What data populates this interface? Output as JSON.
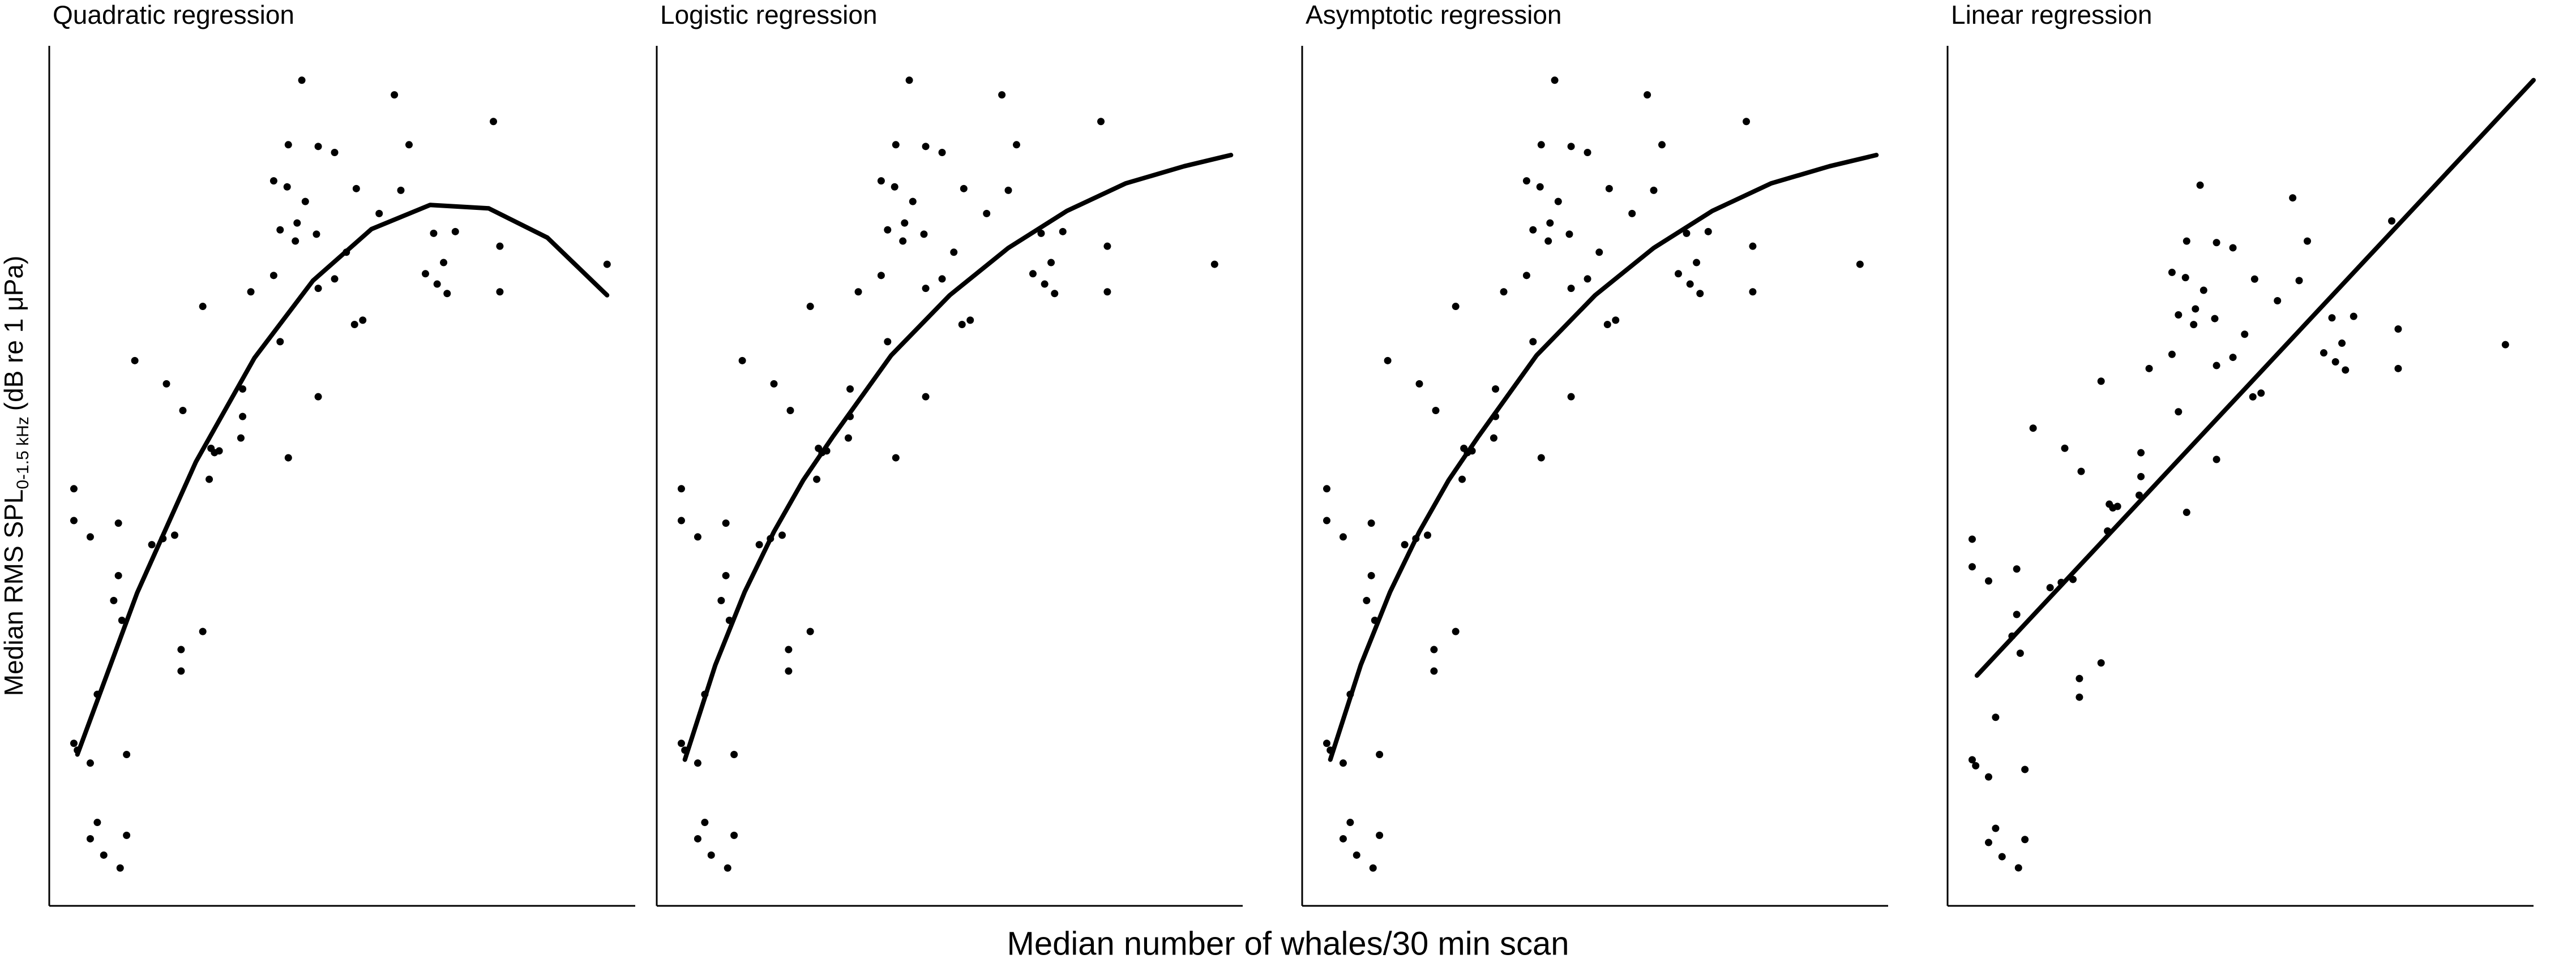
{
  "x_label": "Median number of whales/30 min scan",
  "y_label": {
    "main": "Median RMS SPL",
    "sub": "0-1.5 kHz",
    "unit": "(dB re 1 μPa)"
  },
  "chart_data": [
    {
      "type": "scatter",
      "title": "Quadratic regression",
      "color": "#000000",
      "xlim": [
        0,
        100
      ],
      "ylim": [
        0,
        100
      ],
      "x": [
        43.1,
        58.9,
        75.8,
        40.8,
        45.9,
        48.7,
        61.4,
        38.3,
        40.6,
        52.4,
        60.0,
        43.7,
        56.3,
        39.4,
        42.3,
        45.6,
        42.0,
        65.6,
        69.3,
        50.7,
        34.4,
        45.9,
        48.7,
        38.3,
        67.3,
        64.2,
        66.2,
        67.9,
        76.9,
        76.9,
        95.2,
        26.2,
        53.5,
        52.1,
        14.6,
        39.4,
        45.9,
        20.0,
        22.8,
        33.0,
        33.0,
        32.7,
        27.6,
        29.0,
        28.2,
        27.3,
        40.8,
        17.5,
        19.4,
        21.4,
        11.8,
        4.2,
        4.2,
        7.0,
        11.8,
        11.0,
        12.4,
        26.2,
        22.5,
        22.5,
        8.2,
        4.2,
        4.8,
        13.2,
        7.0,
        8.2,
        7.0,
        13.2,
        9.3,
        12.1
      ],
      "y": [
        96.0,
        94.3,
        91.2,
        88.5,
        88.3,
        87.6,
        88.5,
        84.3,
        83.6,
        83.4,
        83.2,
        81.9,
        80.5,
        78.6,
        79.4,
        78.1,
        77.3,
        78.2,
        78.4,
        76.0,
        71.4,
        71.8,
        72.9,
        73.3,
        74.8,
        73.5,
        72.3,
        71.2,
        76.7,
        71.4,
        74.6,
        69.7,
        68.1,
        67.6,
        63.4,
        65.6,
        59.2,
        60.7,
        57.6,
        60.1,
        56.9,
        54.4,
        53.2,
        52.9,
        52.7,
        49.6,
        52.1,
        42.0,
        42.7,
        43.1,
        44.5,
        48.5,
        44.8,
        42.9,
        38.4,
        35.5,
        33.2,
        31.9,
        29.8,
        27.3,
        24.6,
        18.9,
        18.1,
        17.6,
        16.6,
        9.7,
        7.8,
        8.2,
        5.9,
        4.4
      ],
      "fit": {
        "x": [
          4.8,
          15,
          25,
          35,
          45,
          55,
          65,
          75,
          85,
          95.2
        ],
        "y": [
          17.6,
          36.4,
          51.6,
          63.7,
          72.7,
          78.7,
          81.5,
          81.1,
          77.7,
          71.0
        ]
      }
    },
    {
      "type": "scatter",
      "title": "Logistic regression",
      "color": "#000000",
      "xlim": [
        0,
        100
      ],
      "ylim": [
        0,
        100
      ],
      "x": [
        43.1,
        58.9,
        75.8,
        40.8,
        45.9,
        48.7,
        61.4,
        38.3,
        40.6,
        52.4,
        60.0,
        43.7,
        56.3,
        39.4,
        42.3,
        45.6,
        42.0,
        65.6,
        69.3,
        50.7,
        34.4,
        45.9,
        48.7,
        38.3,
        67.3,
        64.2,
        66.2,
        67.9,
        76.9,
        76.9,
        95.2,
        26.2,
        53.5,
        52.1,
        14.6,
        39.4,
        45.9,
        20.0,
        22.8,
        33.0,
        33.0,
        32.7,
        27.6,
        29.0,
        28.2,
        27.3,
        40.8,
        17.5,
        19.4,
        21.4,
        11.8,
        4.2,
        4.2,
        7.0,
        11.8,
        11.0,
        12.4,
        26.2,
        22.5,
        22.5,
        8.2,
        4.2,
        4.8,
        13.2,
        7.0,
        8.2,
        7.0,
        13.2,
        9.3,
        12.1
      ],
      "y": [
        96.0,
        94.3,
        91.2,
        88.5,
        88.3,
        87.6,
        88.5,
        84.3,
        83.6,
        83.4,
        83.2,
        81.9,
        80.5,
        78.6,
        79.4,
        78.1,
        77.3,
        78.2,
        78.4,
        76.0,
        71.4,
        71.8,
        72.9,
        73.3,
        74.8,
        73.5,
        72.3,
        71.2,
        76.7,
        71.4,
        74.6,
        69.7,
        68.1,
        67.6,
        63.4,
        65.6,
        59.2,
        60.7,
        57.6,
        60.1,
        56.9,
        54.4,
        53.2,
        52.9,
        52.7,
        49.6,
        52.1,
        42.0,
        42.7,
        43.1,
        44.5,
        48.5,
        44.8,
        42.9,
        38.4,
        35.5,
        33.2,
        31.9,
        29.8,
        27.3,
        24.6,
        18.9,
        18.1,
        17.6,
        16.6,
        9.7,
        7.8,
        8.2,
        5.9,
        4.4
      ],
      "fit": {
        "x": [
          4.8,
          10,
          15,
          20,
          25,
          30,
          40,
          50,
          60,
          70,
          80,
          90,
          98
        ],
        "y": [
          17,
          28,
          36.5,
          43.5,
          49.5,
          54.5,
          64,
          71,
          76.5,
          80.8,
          84,
          86,
          87.3
        ]
      }
    },
    {
      "type": "scatter",
      "title": "Asymptotic regression",
      "color": "#000000",
      "xlim": [
        0,
        100
      ],
      "ylim": [
        0,
        100
      ],
      "x": [
        43.1,
        58.9,
        75.8,
        40.8,
        45.9,
        48.7,
        61.4,
        38.3,
        40.6,
        52.4,
        60.0,
        43.7,
        56.3,
        39.4,
        42.3,
        45.6,
        42.0,
        65.6,
        69.3,
        50.7,
        34.4,
        45.9,
        48.7,
        38.3,
        67.3,
        64.2,
        66.2,
        67.9,
        76.9,
        76.9,
        95.2,
        26.2,
        53.5,
        52.1,
        14.6,
        39.4,
        45.9,
        20.0,
        22.8,
        33.0,
        33.0,
        32.7,
        27.6,
        29.0,
        28.2,
        27.3,
        40.8,
        17.5,
        19.4,
        21.4,
        11.8,
        4.2,
        4.2,
        7.0,
        11.8,
        11.0,
        12.4,
        26.2,
        22.5,
        22.5,
        8.2,
        4.2,
        4.8,
        13.2,
        7.0,
        8.2,
        7.0,
        13.2,
        9.3,
        12.1
      ],
      "y": [
        96.0,
        94.3,
        91.2,
        88.5,
        88.3,
        87.6,
        88.5,
        84.3,
        83.6,
        83.4,
        83.2,
        81.9,
        80.5,
        78.6,
        79.4,
        78.1,
        77.3,
        78.2,
        78.4,
        76.0,
        71.4,
        71.8,
        72.9,
        73.3,
        74.8,
        73.5,
        72.3,
        71.2,
        76.7,
        71.4,
        74.6,
        69.7,
        68.1,
        67.6,
        63.4,
        65.6,
        59.2,
        60.7,
        57.6,
        60.1,
        56.9,
        54.4,
        53.2,
        52.9,
        52.7,
        49.6,
        52.1,
        42.0,
        42.7,
        43.1,
        44.5,
        48.5,
        44.8,
        42.9,
        38.4,
        35.5,
        33.2,
        31.9,
        29.8,
        27.3,
        24.6,
        18.9,
        18.1,
        17.6,
        16.6,
        9.7,
        7.8,
        8.2,
        5.9,
        4.4
      ],
      "fit": {
        "x": [
          4.8,
          10,
          15,
          20,
          25,
          30,
          40,
          50,
          60,
          70,
          80,
          90,
          98
        ],
        "y": [
          17,
          28,
          36.5,
          43.5,
          49.5,
          54.5,
          64,
          71,
          76.5,
          80.8,
          84,
          86,
          87.3
        ]
      }
    },
    {
      "type": "scatter",
      "title": "Linear regression",
      "color": "#000000",
      "xlim": [
        0,
        100
      ],
      "ylim": [
        -0.7,
        114.7
      ],
      "x": [
        43.1,
        58.9,
        75.8,
        40.8,
        45.9,
        48.7,
        61.4,
        38.3,
        40.6,
        52.4,
        60.0,
        43.7,
        56.3,
        39.4,
        42.3,
        45.6,
        42.0,
        65.6,
        69.3,
        50.7,
        34.4,
        45.9,
        48.7,
        38.3,
        67.3,
        64.2,
        66.2,
        67.9,
        76.9,
        76.9,
        95.2,
        26.2,
        53.5,
        52.1,
        14.6,
        39.4,
        45.9,
        20.0,
        22.8,
        33.0,
        33.0,
        32.7,
        27.6,
        29.0,
        28.2,
        27.3,
        40.8,
        17.5,
        19.4,
        21.4,
        11.8,
        4.2,
        4.2,
        7.0,
        11.8,
        11.0,
        12.4,
        26.2,
        22.5,
        22.5,
        8.2,
        4.2,
        4.8,
        13.2,
        7.0,
        8.2,
        7.0,
        13.2,
        9.3,
        12.1
      ],
      "y": [
        96.0,
        94.3,
        91.2,
        88.5,
        88.3,
        87.6,
        88.5,
        84.3,
        83.6,
        83.4,
        83.2,
        81.9,
        80.5,
        78.6,
        79.4,
        78.1,
        77.3,
        78.2,
        78.4,
        76.0,
        71.4,
        71.8,
        72.9,
        73.3,
        74.8,
        73.5,
        72.3,
        71.2,
        76.7,
        71.4,
        74.6,
        69.7,
        68.1,
        67.6,
        63.4,
        65.6,
        59.2,
        60.7,
        57.6,
        60.1,
        56.9,
        54.4,
        53.2,
        52.9,
        52.7,
        49.6,
        52.1,
        42.0,
        42.7,
        43.1,
        44.5,
        48.5,
        44.8,
        42.9,
        38.4,
        35.5,
        33.2,
        31.9,
        29.8,
        27.3,
        24.6,
        18.9,
        18.1,
        17.6,
        16.6,
        9.7,
        7.8,
        8.2,
        5.9,
        4.4
      ],
      "fit": {
        "x": [
          5,
          100
        ],
        "y": [
          30.2,
          110.1
        ]
      }
    }
  ]
}
